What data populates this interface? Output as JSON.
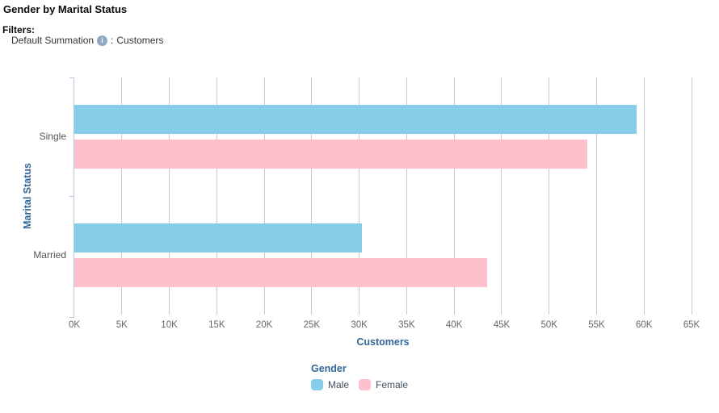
{
  "header": {
    "title": "Gender by Marital Status",
    "filters_label": "Filters:",
    "filter_item": {
      "name": "Default Summation",
      "info_icon": "i",
      "separator": ":",
      "value": "Customers"
    }
  },
  "chart_data": {
    "type": "bar",
    "orientation": "horizontal",
    "categories": [
      "Single",
      "Married"
    ],
    "series": [
      {
        "name": "Male",
        "color": "#87cdea",
        "values": [
          59200,
          30300
        ]
      },
      {
        "name": "Female",
        "color": "#ffc0cd",
        "values": [
          54000,
          43500
        ]
      }
    ],
    "xlabel": "Customers",
    "ylabel": "Marital Status",
    "xlim": [
      0,
      65000
    ],
    "x_ticks": [
      "0K",
      "5K",
      "10K",
      "15K",
      "20K",
      "25K",
      "30K",
      "35K",
      "40K",
      "45K",
      "50K",
      "55K",
      "60K",
      "65K"
    ],
    "grid": true,
    "legend_title": "Gender",
    "legend_position": "bottom"
  }
}
